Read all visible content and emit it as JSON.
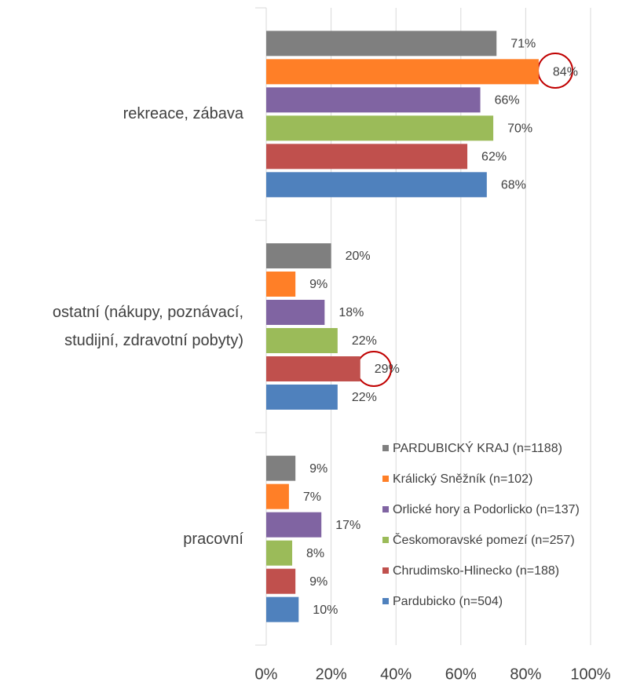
{
  "chart_data": {
    "type": "barh",
    "categories": [
      "rekreace, zábava",
      "ostatní (nákupy, poznávací, studijní, zdravotní pobyty)",
      "pracovní"
    ],
    "series": [
      {
        "name": "PARDUBICKÝ KRAJ (n=1188)",
        "color": "#7f7f7f",
        "values": [
          71,
          20,
          9
        ],
        "value_labels": [
          "71%",
          "20%",
          "9%"
        ]
      },
      {
        "name": "Králický Sněžník (n=102)",
        "color": "#ff7f27",
        "values": [
          84,
          9,
          7
        ],
        "value_labels": [
          "84%",
          "9%",
          "7%"
        ]
      },
      {
        "name": "Orlické hory a Podorlicko (n=137)",
        "color": "#8064a2",
        "values": [
          66,
          18,
          17
        ],
        "value_labels": [
          "66%",
          "18%",
          "17%"
        ]
      },
      {
        "name": "Českomoravské pomezí (n=257)",
        "color": "#9bbb59",
        "values": [
          70,
          22,
          8
        ],
        "value_labels": [
          "70%",
          "22%",
          "8%"
        ]
      },
      {
        "name": "Chrudimsko-Hlinecko (n=188)",
        "color": "#c0504d",
        "values": [
          62,
          29,
          9
        ],
        "value_labels": [
          "62%",
          "29%",
          "9%"
        ]
      },
      {
        "name": "Pardubicko (n=504)",
        "color": "#4f81bd",
        "values": [
          68,
          22,
          10
        ],
        "value_labels": [
          "68%",
          "22%",
          "10%"
        ]
      }
    ],
    "xlim": [
      0,
      100
    ],
    "xticks": [
      {
        "value": 0,
        "label": "0%"
      },
      {
        "value": 20,
        "label": "20%"
      },
      {
        "value": 40,
        "label": "40%"
      },
      {
        "value": 60,
        "label": "60%"
      },
      {
        "value": 80,
        "label": "80%"
      },
      {
        "value": 100,
        "label": "100%"
      }
    ],
    "grid": true,
    "legend": "lower right"
  }
}
